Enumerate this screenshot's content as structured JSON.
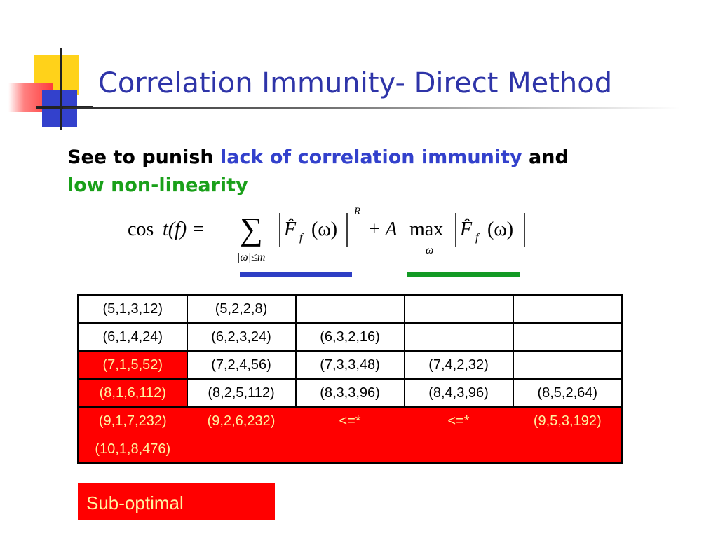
{
  "slide": {
    "title": "Correlation Immunity- Direct Method",
    "intro": {
      "part1": "See to punish ",
      "part2": "lack of correlation immunity",
      "part3": " and",
      "part4": "low non-linearity"
    },
    "formula": {
      "cos": "cos",
      "t_f": "t(f) = ",
      "sum": "∑",
      "sum_sub": "|ω|≤m",
      "F1": "F̂",
      "f_sub": "f",
      "arg": "(ω)",
      "exp": "R",
      "plus_A": "+ A",
      "max": "max",
      "max_sub": "ω"
    },
    "table": {
      "rows": [
        [
          "(5,1,3,12)",
          "(5,2,2,8)",
          "",
          "",
          ""
        ],
        [
          "(6,1,4,24)",
          "(6,2,3,24)",
          "(6,3,2,16)",
          "",
          ""
        ],
        [
          "(7,1,5,52)",
          "(7,2,4,56)",
          "(7,3,3,48)",
          "(7,4,2,32)",
          ""
        ],
        [
          "(8,1,6,112)",
          "(8,2,5,112)",
          "(8,3,3,96)",
          "(8,4,3,96)",
          "(8,5,2,64)"
        ],
        [
          "(9,1,7,232)",
          "(9,2,6,232)",
          "<=*",
          "<=*",
          "(9,5,3,192)"
        ],
        [
          "(10,1,8,476)"
        ]
      ]
    },
    "legend": "Sub-optimal",
    "colors": {
      "title": "#2e34a8",
      "highlight_blue": "#3341cc",
      "highlight_green": "#1aa01a",
      "suboptimal_red": "#ff0000",
      "suboptimal_text": "#fff3a0"
    }
  }
}
